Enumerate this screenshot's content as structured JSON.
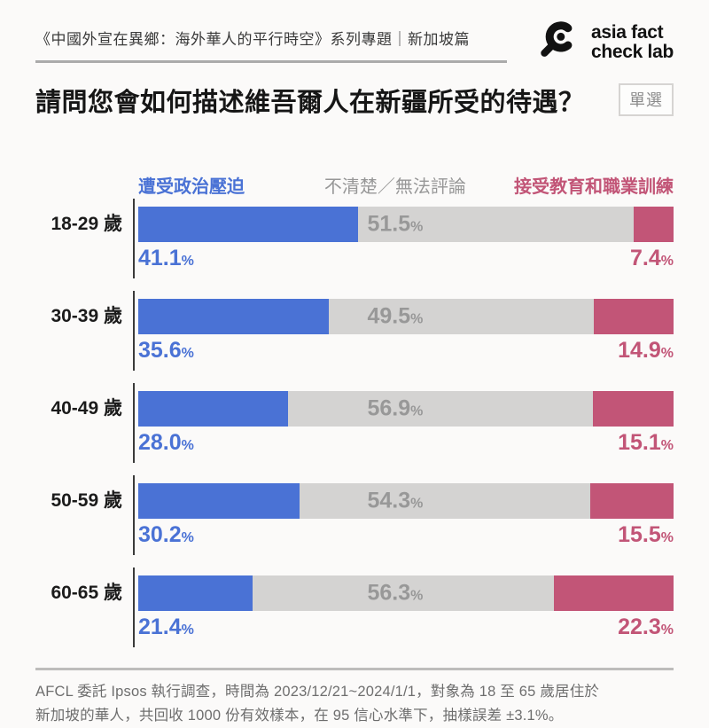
{
  "page": {
    "background": "#fbfaf9"
  },
  "header": {
    "series_title": "《中國外宣在異鄉：海外華人的平行時空》系列專題｜新加坡篇",
    "logo": {
      "line1": "asia fact",
      "line2": "check lab",
      "color": "#121212",
      "icon": "magnifier-icon"
    }
  },
  "question": {
    "title": "請問您會如何描述維吾爾人在新疆所受的待遇？",
    "badge": "單選"
  },
  "legend": [
    {
      "label": "遭受政治壓迫",
      "color": "#4a72d5"
    },
    {
      "label": "不清楚／無法評論",
      "color": "#979797"
    },
    {
      "label": "接受教育和職業訓練",
      "color": "#c25577"
    }
  ],
  "chart_data": {
    "type": "bar",
    "stacked": true,
    "orientation": "horizontal",
    "categories": [
      "18-29 歲",
      "30-39 歲",
      "40-49 歲",
      "50-59 歲",
      "60-65 歲"
    ],
    "series": [
      {
        "name": "遭受政治壓迫",
        "color": "#4a72d5",
        "text_color": "#4a72d5",
        "values": [
          41.1,
          35.6,
          28.0,
          30.2,
          21.4
        ]
      },
      {
        "name": "不清楚／無法評論",
        "color": "#d4d3d2",
        "text_color": "#989898",
        "values": [
          51.5,
          49.5,
          56.9,
          54.3,
          56.3
        ]
      },
      {
        "name": "接受教育和職業訓練",
        "color": "#c25577",
        "text_color": "#c25577",
        "values": [
          7.4,
          14.9,
          15.1,
          15.5,
          22.3
        ]
      }
    ],
    "value_suffix": "%",
    "xlim": [
      0,
      100
    ],
    "grid": false,
    "legend_position": "top"
  },
  "footer": {
    "line1": "AFCL 委託 Ipsos 執行調查，時間為 2023/12/21~2024/1/1，對象為 18 至 65 歲居住於",
    "line2": "新加坡的華人，共回收 1000 份有效樣本，在 95 信心水準下，抽樣誤差 ±3.1%。"
  }
}
